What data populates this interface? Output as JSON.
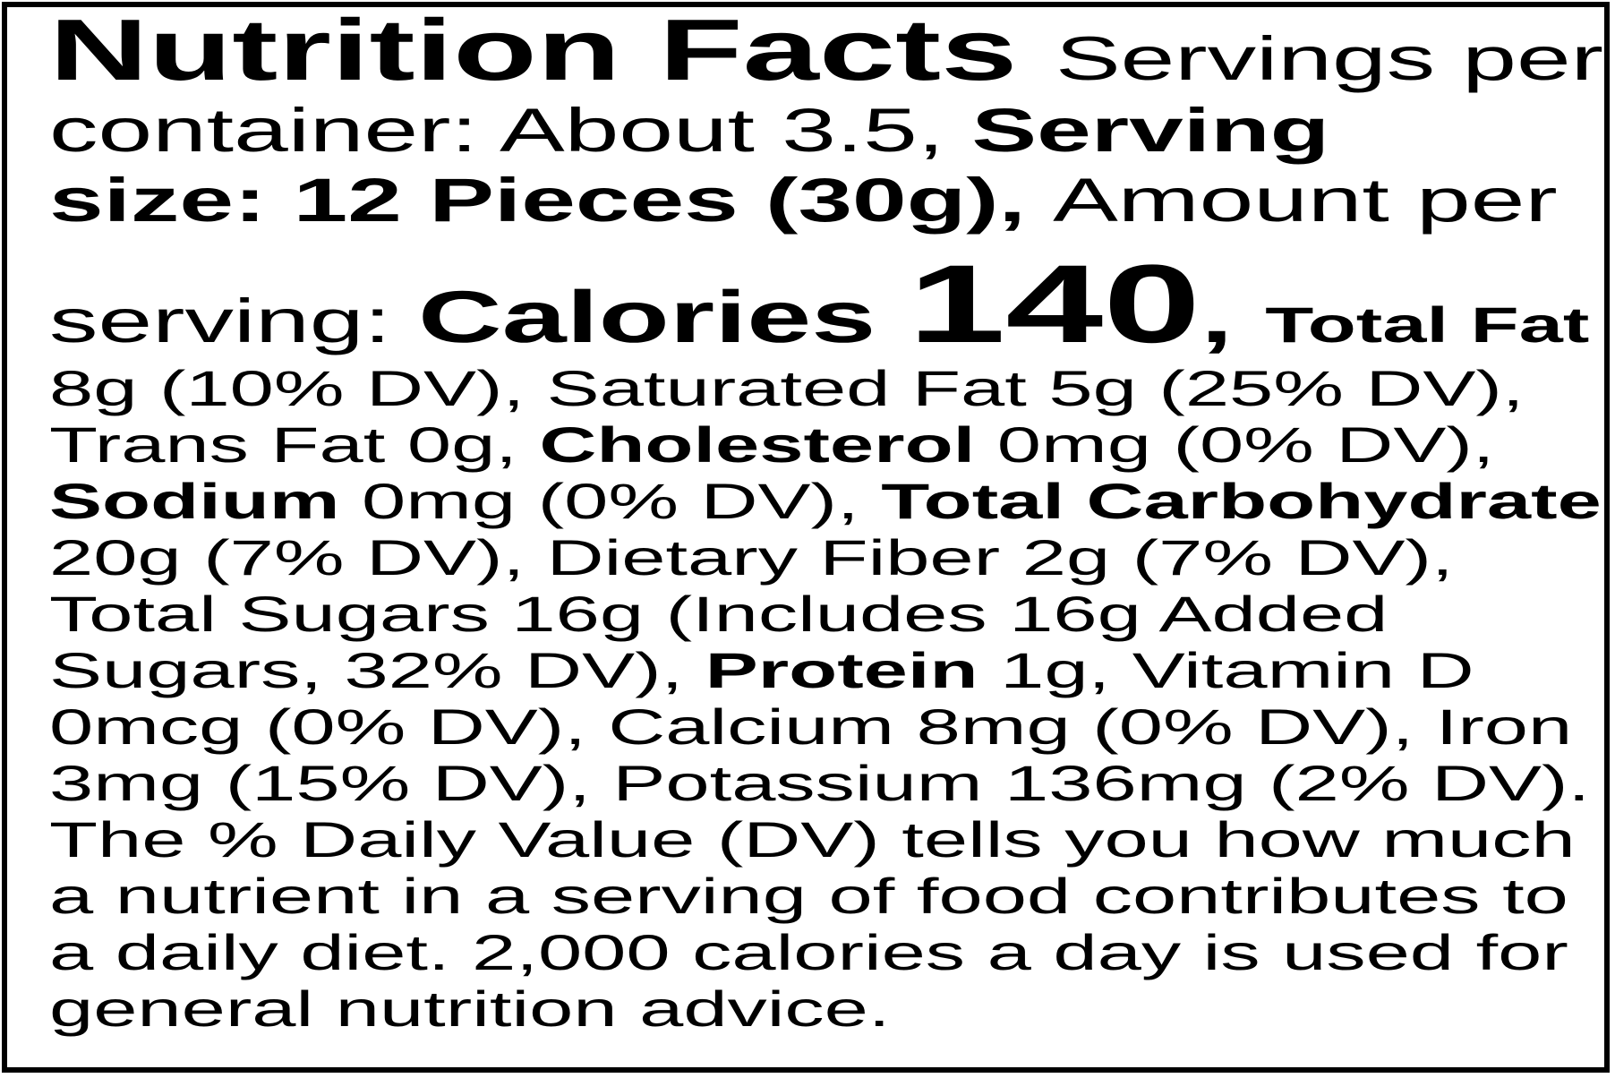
{
  "colors": {
    "text": "#000000",
    "background": "#ffffff",
    "border": "#000000"
  },
  "nutrition": {
    "title": "Nutrition Facts",
    "servings_per_container": "About 3.5",
    "serving_size": "12 Pieces (30g)",
    "calories": "140",
    "nutrients": [
      {
        "name": "Total Fat",
        "amount": "8g",
        "dv": "10% DV"
      },
      {
        "name": "Saturated Fat",
        "amount": "5g",
        "dv": "25% DV"
      },
      {
        "name": "Trans Fat",
        "amount": "0g",
        "dv": ""
      },
      {
        "name": "Cholesterol",
        "amount": "0mg",
        "dv": "0% DV"
      },
      {
        "name": "Sodium",
        "amount": "0mg",
        "dv": "0% DV"
      },
      {
        "name": "Total Carbohydrate",
        "amount": "20g",
        "dv": "7% DV"
      },
      {
        "name": "Dietary Fiber",
        "amount": "2g",
        "dv": "7% DV"
      },
      {
        "name": "Total Sugars",
        "amount": "16g",
        "dv": ""
      },
      {
        "name": "Includes Added Sugars",
        "amount": "16g",
        "dv": "32% DV"
      },
      {
        "name": "Protein",
        "amount": "1g",
        "dv": ""
      },
      {
        "name": "Vitamin D",
        "amount": "0mcg",
        "dv": "0% DV"
      },
      {
        "name": "Calcium",
        "amount": "8mg",
        "dv": "0% DV"
      },
      {
        "name": "Iron",
        "amount": "3mg",
        "dv": "15% DV"
      },
      {
        "name": "Potassium",
        "amount": "136mg",
        "dv": "2% DV"
      }
    ],
    "footnote": "The % Daily Value (DV) tells you how much a nutrient in a serving of food contributes to a daily diet. 2,000 calories a day is used for general nutrition advice."
  },
  "label": {
    "lines": [
      {
        "segments": [
          {
            "text": "Nutrition Facts ",
            "style": "title",
            "name": "label-title"
          },
          {
            "text": "Servings per",
            "style": "lg"
          }
        ]
      },
      {
        "segments": [
          {
            "text": "container: About 3.5, ",
            "style": "lg",
            "name": "servings-per-container"
          },
          {
            "text": "Serving",
            "style": "lg-bold"
          }
        ]
      },
      {
        "segments": [
          {
            "text": "size: 12 Pieces (30g), ",
            "style": "lg-bold",
            "name": "serving-size"
          },
          {
            "text": "Amount per",
            "style": "lg"
          }
        ]
      },
      {
        "segments": [
          {
            "text": "serving: ",
            "style": "lg"
          },
          {
            "text": "Calories ",
            "style": "cal",
            "name": "calories-label"
          },
          {
            "text": "140",
            "style": "kcal",
            "name": "calories-value"
          },
          {
            "text": ", ",
            "style": "cal"
          },
          {
            "text": "Total Fat",
            "style": "bold",
            "name": "total-fat-label"
          }
        ]
      },
      {
        "segments": [
          {
            "text": "8g (10% DV), Saturated Fat 5g (25% DV),",
            "style": "reg"
          }
        ]
      },
      {
        "segments": [
          {
            "text": "Trans Fat 0g, ",
            "style": "reg"
          },
          {
            "text": "Cholesterol",
            "style": "bold",
            "name": "cholesterol-label"
          },
          {
            "text": " 0mg (0% DV),",
            "style": "reg"
          }
        ]
      },
      {
        "segments": [
          {
            "text": "Sodium",
            "style": "bold",
            "name": "sodium-label"
          },
          {
            "text": " 0mg (0% DV), ",
            "style": "reg"
          },
          {
            "text": "Total Carbohydrate",
            "style": "bold",
            "name": "total-carbohydrate-label"
          }
        ]
      },
      {
        "segments": [
          {
            "text": "20g (7% DV), Dietary Fiber 2g (7% DV),",
            "style": "reg"
          }
        ]
      },
      {
        "segments": [
          {
            "text": "Total Sugars 16g (Includes 16g Added",
            "style": "reg"
          }
        ]
      },
      {
        "segments": [
          {
            "text": "Sugars, 32% DV), ",
            "style": "reg"
          },
          {
            "text": "Protein",
            "style": "bold",
            "name": "protein-label"
          },
          {
            "text": " 1g, Vitamin D",
            "style": "reg"
          }
        ]
      },
      {
        "segments": [
          {
            "text": "0mcg (0% DV), Calcium 8mg (0% DV), Iron",
            "style": "reg"
          }
        ]
      },
      {
        "segments": [
          {
            "text": "3mg (15% DV), Potassium 136mg (2% DV).",
            "style": "reg"
          }
        ]
      },
      {
        "segments": [
          {
            "text": "The % Daily Value (DV) tells you how much",
            "style": "reg",
            "name": "footnote-text"
          }
        ]
      },
      {
        "segments": [
          {
            "text": "a nutrient in a serving of food contributes to",
            "style": "reg",
            "name": "footnote-text"
          }
        ]
      },
      {
        "segments": [
          {
            "text": "a daily diet. 2,000 calories a day is used for",
            "style": "reg",
            "name": "footnote-text"
          }
        ]
      },
      {
        "segments": [
          {
            "text": "general nutrition advice.",
            "style": "reg",
            "name": "footnote-text"
          }
        ]
      }
    ]
  }
}
